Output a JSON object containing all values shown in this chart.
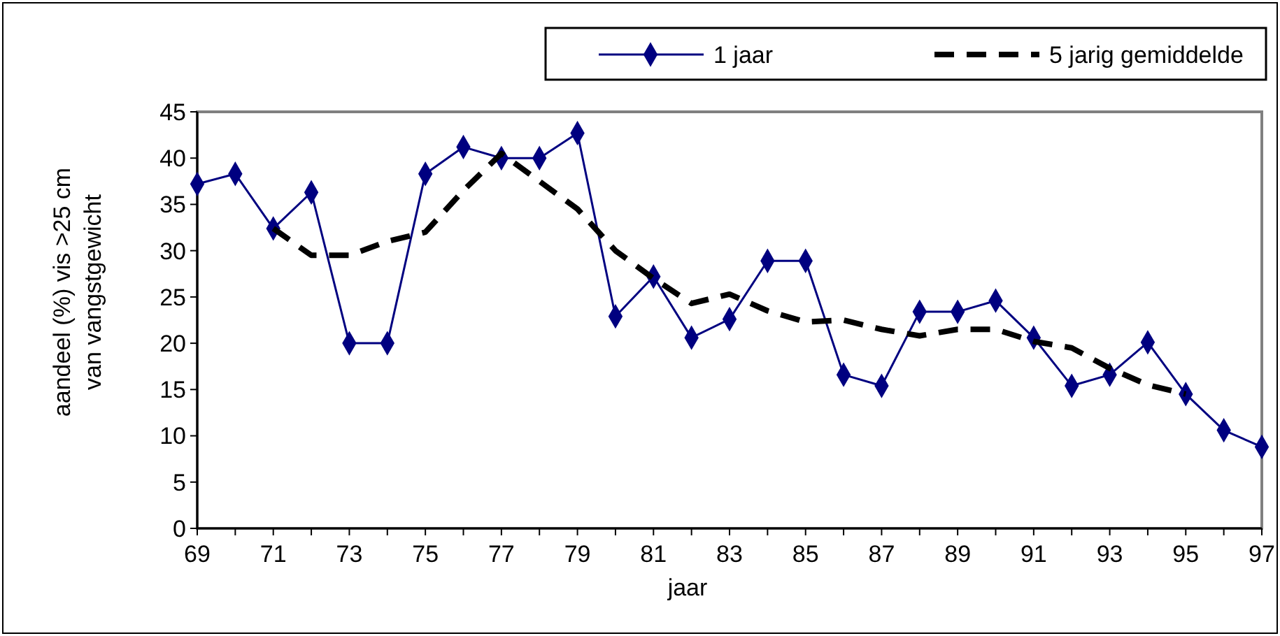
{
  "chart_data": {
    "type": "line",
    "xlabel": "jaar",
    "ylabel": "aandeel  (%) vis  >25 cm\nvan vangstgewicht",
    "x": [
      69,
      70,
      71,
      72,
      73,
      74,
      75,
      76,
      77,
      78,
      79,
      80,
      81,
      82,
      83,
      84,
      85,
      86,
      87,
      88,
      89,
      90,
      91,
      92,
      93,
      94,
      95,
      96,
      97
    ],
    "series": [
      {
        "name": "1 jaar",
        "color": "#000080",
        "marker": "diamond",
        "line_style": "solid",
        "values": [
          37.2,
          38.3,
          32.4,
          36.3,
          20,
          20,
          38.3,
          41.2,
          40,
          40,
          42.7,
          22.9,
          27.2,
          20.6,
          22.6,
          28.9,
          28.9,
          16.6,
          15.4,
          23.4,
          23.4,
          24.6,
          20.6,
          15.4,
          16.6,
          20.1,
          14.5,
          10.6,
          8.8
        ]
      },
      {
        "name": "5 jarig gemiddelde",
        "color": "#000000",
        "marker": "none",
        "line_style": "dashed",
        "x": [
          71,
          72,
          73,
          74,
          75,
          76,
          77,
          78,
          79,
          80,
          81,
          82,
          83,
          84,
          85,
          86,
          87,
          88,
          89,
          90,
          91,
          92,
          93,
          94,
          95
        ],
        "values": [
          32.4,
          29.5,
          29.5,
          31,
          32,
          36.5,
          40.5,
          37.5,
          34.5,
          30,
          27,
          24.3,
          25.3,
          23.5,
          22.3,
          22.5,
          21.5,
          20.8,
          21.5,
          21.5,
          20.2,
          19.5,
          17.3,
          15.5,
          14.5
        ]
      }
    ],
    "xlim": [
      69,
      97
    ],
    "xticks": [
      69,
      {
        "value": 70,
        "label": null
      },
      71,
      {
        "value": 72,
        "label": null
      },
      73,
      {
        "value": 74,
        "label": null
      },
      75,
      {
        "value": 76,
        "label": null
      },
      77,
      {
        "value": 78,
        "label": null
      },
      79,
      {
        "value": 80,
        "label": null
      },
      81,
      {
        "value": 82,
        "label": null
      },
      83,
      {
        "value": 84,
        "label": null
      },
      85,
      {
        "value": 86,
        "label": null
      },
      87,
      {
        "value": 88,
        "label": null
      },
      89,
      {
        "value": 90,
        "label": null
      },
      91,
      {
        "value": 92,
        "label": null
      },
      93,
      {
        "value": 94,
        "label": null
      },
      95,
      {
        "value": 96,
        "label": null
      },
      97
    ],
    "ylim": [
      0,
      45
    ],
    "yticks": [
      0,
      5,
      10,
      15,
      20,
      25,
      30,
      35,
      40,
      45
    ],
    "grid": false,
    "legend": "top right"
  }
}
